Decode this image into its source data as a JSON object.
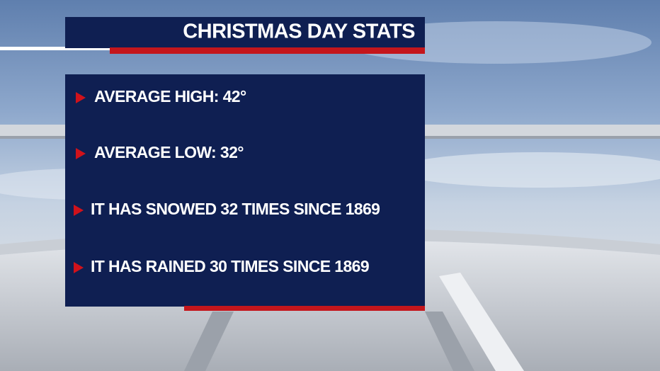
{
  "header": {
    "title": "CHRISTMAS DAY STATS"
  },
  "items": [
    "AVERAGE HIGH: 42°",
    "AVERAGE LOW: 32°",
    "IT HAS SNOWED 32 TIMES SINCE 1869",
    "IT HAS RAINED 30 TIMES SINCE 1869"
  ]
}
